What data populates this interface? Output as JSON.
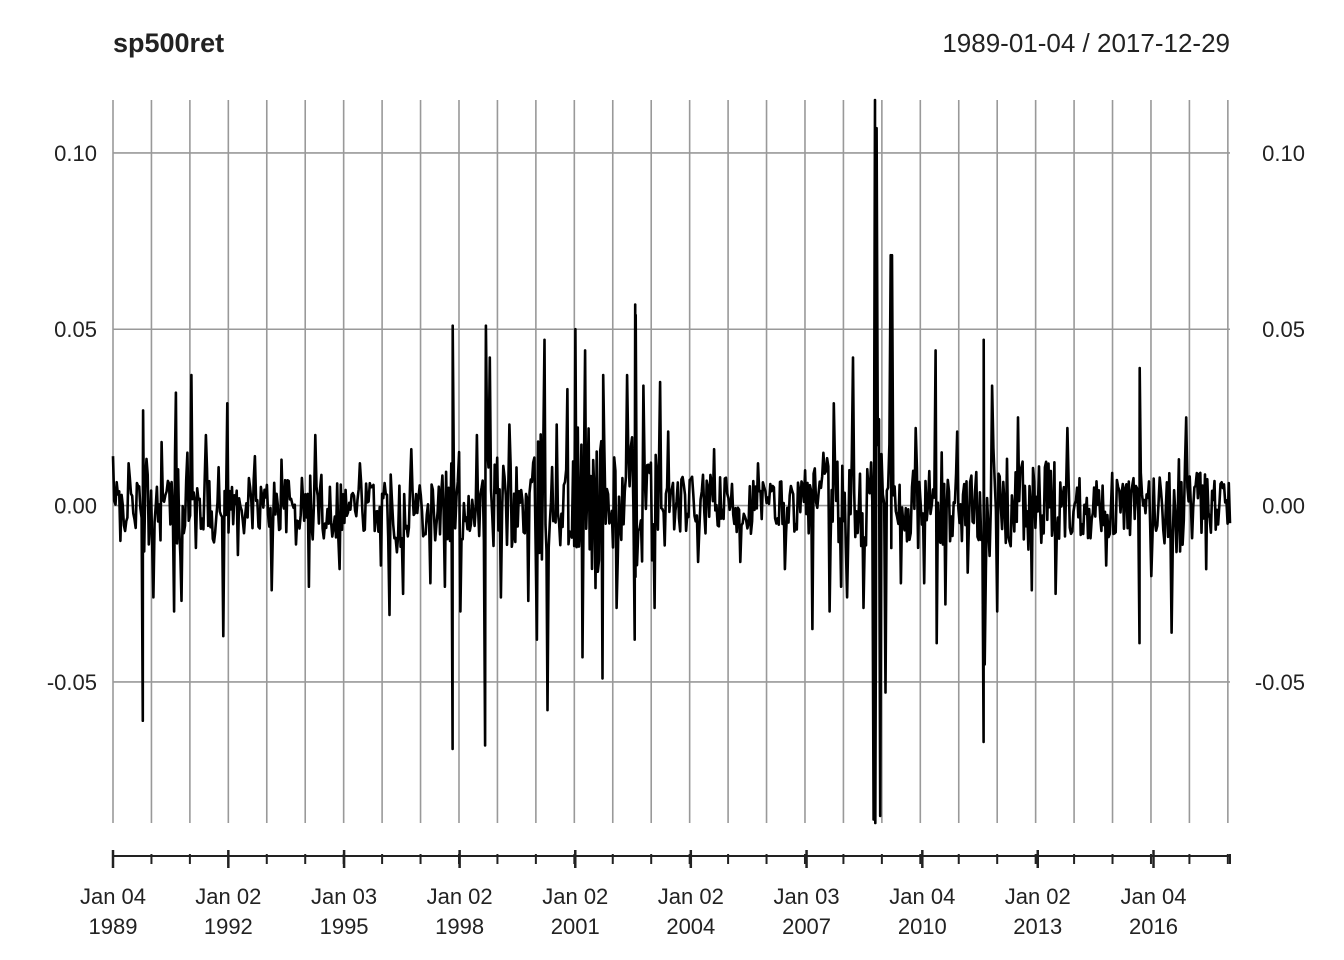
{
  "title": "sp500ret",
  "date_range": "1989-01-04 / 2017-12-29",
  "colors": {
    "series": "#000000",
    "grid": "#999999",
    "text": "#222222"
  },
  "chart_data": {
    "type": "line",
    "title": "sp500ret",
    "subtitle": "1989-01-04 / 2017-12-29",
    "x_range": [
      "1989-01-04",
      "2017-12-29"
    ],
    "ylim": [
      -0.09,
      0.115
    ],
    "y_ticks": [
      {
        "value": -0.05,
        "label": "-0.05"
      },
      {
        "value": 0.0,
        "label": "0.00"
      },
      {
        "value": 0.05,
        "label": "0.05"
      },
      {
        "value": 0.1,
        "label": "0.10"
      }
    ],
    "x_ticks": [
      {
        "date": "1989-01-04",
        "line1": "Jan 04",
        "line2": "1989"
      },
      {
        "date": "1992-01-02",
        "line1": "Jan 02",
        "line2": "1992"
      },
      {
        "date": "1995-01-03",
        "line1": "Jan 03",
        "line2": "1995"
      },
      {
        "date": "1998-01-02",
        "line1": "Jan 02",
        "line2": "1998"
      },
      {
        "date": "2001-01-02",
        "line1": "Jan 02",
        "line2": "2001"
      },
      {
        "date": "2004-01-02",
        "line1": "Jan 02",
        "line2": "2004"
      },
      {
        "date": "2007-01-03",
        "line1": "Jan 03",
        "line2": "2007"
      },
      {
        "date": "2010-01-04",
        "line1": "Jan 04",
        "line2": "2010"
      },
      {
        "date": "2013-01-02",
        "line1": "Jan 02",
        "line2": "2013"
      },
      {
        "date": "2016-01-04",
        "line1": "Jan 04",
        "line2": "2016"
      }
    ],
    "grid": true,
    "y_axis": "both sides",
    "series": [
      {
        "values": [
          [
            "1989-01-04",
            0.014
          ],
          [
            "1989-03-15",
            -0.01
          ],
          [
            "1989-06-01",
            0.012
          ],
          [
            "1989-10-13",
            -0.061
          ],
          [
            "1989-10-16",
            0.027
          ],
          [
            "1990-01-22",
            -0.026
          ],
          [
            "1990-04-10",
            0.018
          ],
          [
            "1990-08-06",
            -0.03
          ],
          [
            "1990-08-23",
            0.032
          ],
          [
            "1990-10-15",
            -0.027
          ],
          [
            "1990-12-10",
            0.015
          ],
          [
            "1991-01-17",
            0.037
          ],
          [
            "1991-03-01",
            -0.012
          ],
          [
            "1991-06-03",
            0.02
          ],
          [
            "1991-11-15",
            -0.037
          ],
          [
            "1991-12-23",
            0.029
          ],
          [
            "1992-04-02",
            -0.014
          ],
          [
            "1992-09-10",
            0.014
          ],
          [
            "1993-02-16",
            -0.024
          ],
          [
            "1993-05-20",
            0.013
          ],
          [
            "1993-10-04",
            -0.011
          ],
          [
            "1994-02-04",
            -0.023
          ],
          [
            "1994-04-05",
            0.02
          ],
          [
            "1994-11-22",
            -0.018
          ],
          [
            "1995-06-02",
            0.012
          ],
          [
            "1995-12-18",
            -0.017
          ],
          [
            "1996-03-08",
            -0.031
          ],
          [
            "1996-07-15",
            -0.025
          ],
          [
            "1996-10-01",
            0.016
          ],
          [
            "1997-03-31",
            -0.022
          ],
          [
            "1997-08-15",
            -0.023
          ],
          [
            "1997-10-27",
            -0.069
          ],
          [
            "1997-10-28",
            0.051
          ],
          [
            "1998-01-09",
            -0.03
          ],
          [
            "1998-06-15",
            0.02
          ],
          [
            "1998-08-31",
            -0.068
          ],
          [
            "1998-09-08",
            0.051
          ],
          [
            "1998-10-15",
            0.042
          ],
          [
            "1999-01-28",
            -0.026
          ],
          [
            "1999-04-19",
            0.023
          ],
          [
            "1999-10-15",
            -0.027
          ],
          [
            "2000-01-04",
            -0.038
          ],
          [
            "2000-03-16",
            0.047
          ],
          [
            "2000-04-14",
            -0.058
          ],
          [
            "2000-07-10",
            0.023
          ],
          [
            "2000-10-19",
            0.033
          ],
          [
            "2001-01-03",
            0.05
          ],
          [
            "2001-03-12",
            -0.043
          ],
          [
            "2001-04-05",
            0.044
          ],
          [
            "2001-09-17",
            -0.049
          ],
          [
            "2001-09-24",
            0.037
          ],
          [
            "2002-01-29",
            -0.029
          ],
          [
            "2002-05-08",
            0.037
          ],
          [
            "2002-07-19",
            -0.038
          ],
          [
            "2002-07-24",
            0.057
          ],
          [
            "2002-07-29",
            0.054
          ],
          [
            "2002-10-10",
            0.034
          ],
          [
            "2003-01-24",
            -0.029
          ],
          [
            "2003-03-17",
            0.035
          ],
          [
            "2003-06-02",
            0.021
          ],
          [
            "2004-03-11",
            -0.016
          ],
          [
            "2004-08-10",
            0.016
          ],
          [
            "2005-04-15",
            -0.016
          ],
          [
            "2005-09-30",
            0.012
          ],
          [
            "2006-06-12",
            -0.018
          ],
          [
            "2006-12-20",
            0.01
          ],
          [
            "2007-02-27",
            -0.035
          ],
          [
            "2007-08-09",
            -0.03
          ],
          [
            "2007-09-18",
            0.029
          ],
          [
            "2007-11-26",
            -0.023
          ],
          [
            "2008-01-22",
            -0.026
          ],
          [
            "2008-03-18",
            0.042
          ],
          [
            "2008-06-26",
            -0.029
          ],
          [
            "2008-09-29",
            -0.089
          ],
          [
            "2008-10-13",
            0.115
          ],
          [
            "2008-10-15",
            -0.09
          ],
          [
            "2008-10-28",
            0.107
          ],
          [
            "2008-12-01",
            -0.088
          ],
          [
            "2009-01-20",
            -0.053
          ],
          [
            "2009-03-10",
            0.071
          ],
          [
            "2009-03-23",
            0.071
          ],
          [
            "2009-06-15",
            -0.022
          ],
          [
            "2009-11-02",
            0.022
          ],
          [
            "2010-01-22",
            -0.022
          ],
          [
            "2010-05-10",
            0.044
          ],
          [
            "2010-05-20",
            -0.039
          ],
          [
            "2010-08-11",
            -0.028
          ],
          [
            "2010-12-01",
            0.021
          ],
          [
            "2011-03-10",
            -0.019
          ],
          [
            "2011-08-08",
            -0.067
          ],
          [
            "2011-08-09",
            0.047
          ],
          [
            "2011-08-18",
            -0.045
          ],
          [
            "2011-10-27",
            0.034
          ],
          [
            "2011-12-15",
            -0.03
          ],
          [
            "2012-06-29",
            0.025
          ],
          [
            "2012-11-07",
            -0.024
          ],
          [
            "2013-06-20",
            -0.025
          ],
          [
            "2013-10-10",
            0.022
          ],
          [
            "2014-10-13",
            -0.017
          ],
          [
            "2015-08-24",
            -0.039
          ],
          [
            "2015-08-26",
            0.039
          ],
          [
            "2015-12-14",
            -0.02
          ],
          [
            "2016-06-24",
            -0.036
          ],
          [
            "2016-11-09",
            0.025
          ],
          [
            "2017-05-17",
            -0.018
          ],
          [
            "2017-12-29",
            -0.005
          ]
        ]
      }
    ]
  }
}
